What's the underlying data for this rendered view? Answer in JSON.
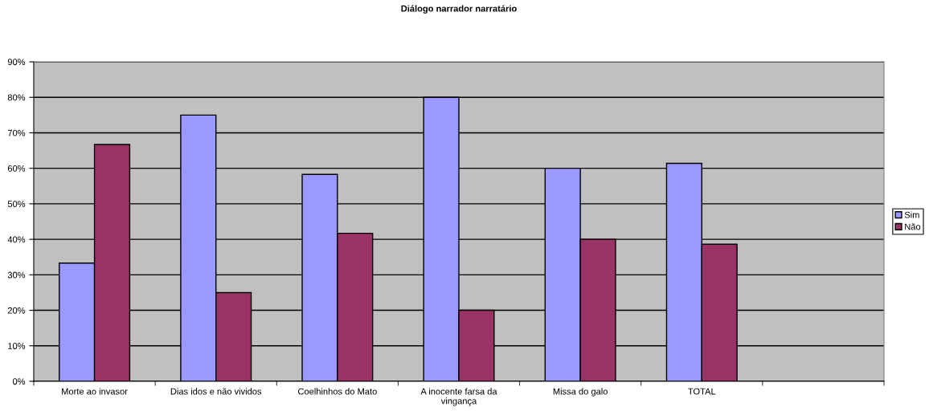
{
  "chart_data": {
    "type": "bar",
    "title": "Diálogo narrador narratário",
    "categories": [
      "Morte ao invasor",
      "Dias idos e não vividos",
      "Coelhinhos do Mato",
      "A inocente farsa da\nvingança",
      "Missa do galo",
      "TOTAL",
      null
    ],
    "series": [
      {
        "name": "Sim",
        "color": "#9999ff",
        "values": [
          33.3,
          75,
          58.3,
          80,
          60,
          61.4,
          null
        ]
      },
      {
        "name": "Não",
        "color": "#993366",
        "values": [
          66.7,
          25,
          41.7,
          20,
          40,
          38.6,
          null
        ]
      }
    ],
    "ylim": [
      0,
      90
    ],
    "yticks": [
      {
        "value": 0,
        "label": "0%"
      },
      {
        "value": 10,
        "label": "10%"
      },
      {
        "value": 20,
        "label": "20%"
      },
      {
        "value": 30,
        "label": "30%"
      },
      {
        "value": 40,
        "label": "40%"
      },
      {
        "value": 50,
        "label": "50%"
      },
      {
        "value": 60,
        "label": "60%"
      },
      {
        "value": 70,
        "label": "70%"
      },
      {
        "value": 80,
        "label": "80%"
      },
      {
        "value": 90,
        "label": "90%"
      }
    ],
    "grid": "y",
    "legend": "right"
  }
}
